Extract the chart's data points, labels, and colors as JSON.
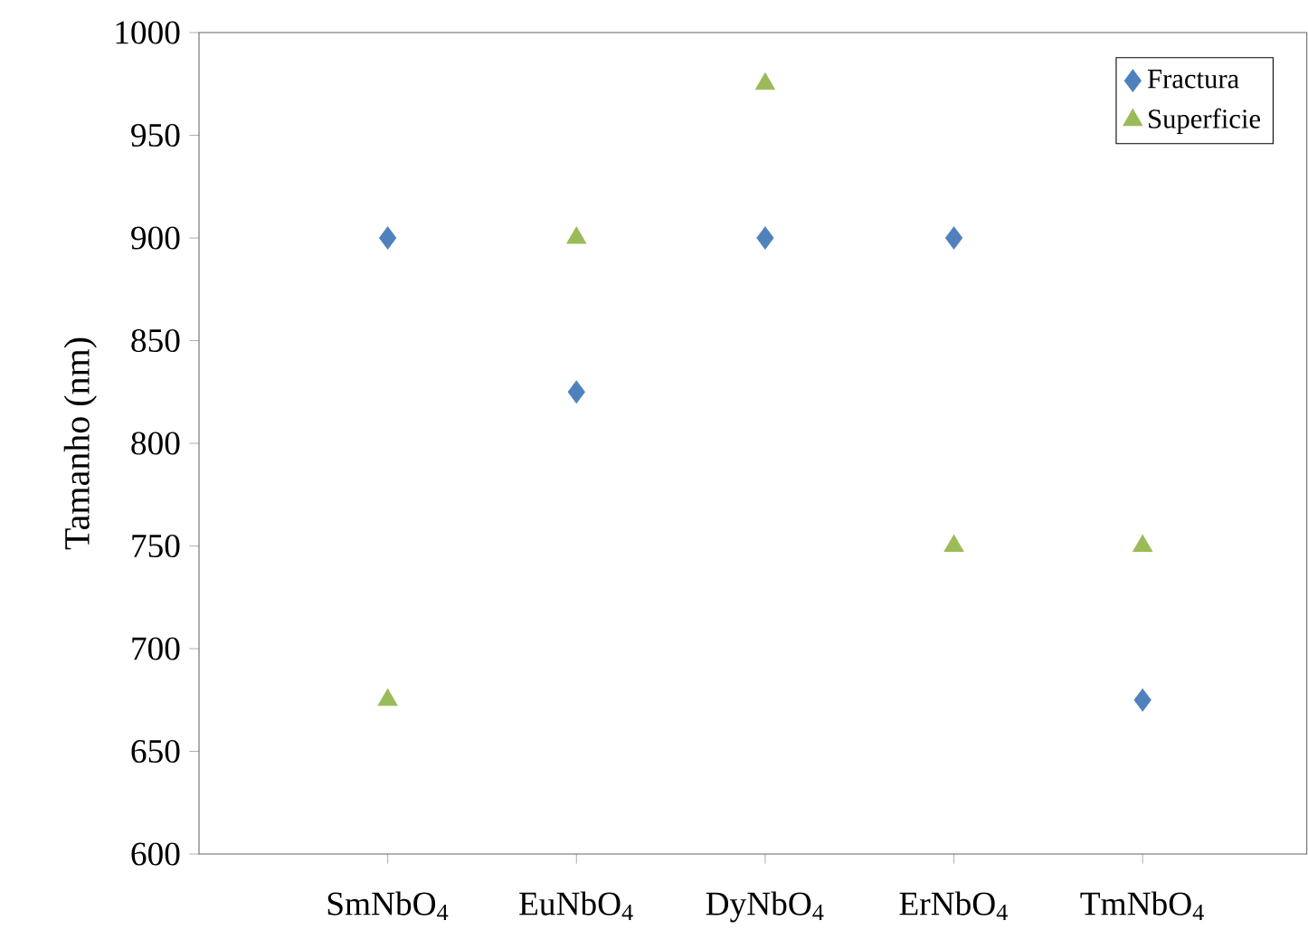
{
  "chart_data": {
    "type": "scatter",
    "ylabel": "Tamanho (nm)",
    "categories": [
      "SmNbO$_{4}$",
      "EuNbO$_{4}$",
      "DyNbO$_{4}$",
      "ErNbO$_{4}$",
      "TmNbO$_{4}$"
    ],
    "series": [
      {
        "name": "Fractura",
        "color": "#4f81bd",
        "marker": "diamond",
        "values": [
          900,
          825,
          900,
          900,
          675
        ]
      },
      {
        "name": "Superficie",
        "color": "#9bbb59",
        "marker": "triangle",
        "values": [
          675,
          900,
          975,
          750,
          750
        ]
      }
    ],
    "ylim": [
      600,
      1000
    ],
    "yticks": [
      600,
      650,
      700,
      750,
      800,
      850,
      900,
      950,
      1000
    ],
    "grid": false,
    "legend": "top right"
  }
}
